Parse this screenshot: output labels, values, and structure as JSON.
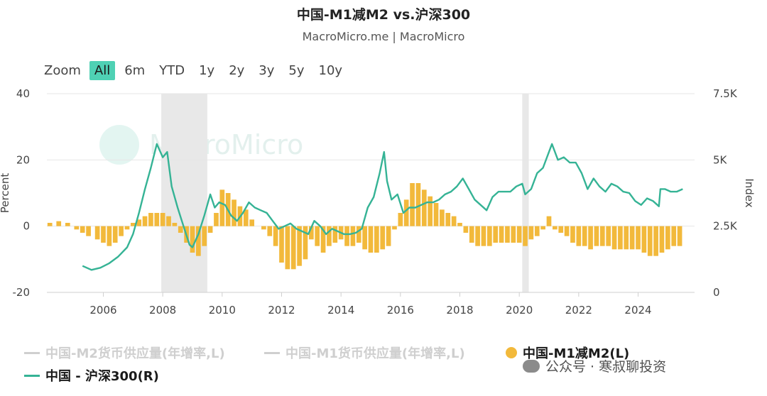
{
  "header": {
    "title": "中国-M1减M2 vs.沪深300",
    "subtitle": "MacroMicro.me | MacroMicro"
  },
  "zoom": {
    "label": "Zoom",
    "options": [
      "All",
      "6m",
      "YTD",
      "1y",
      "2y",
      "3y",
      "5y",
      "10y"
    ],
    "active": "All"
  },
  "watermark": {
    "text": "MacroMicro"
  },
  "footer": {
    "wechat": "公众号 · 寒叔聊投资"
  },
  "colors": {
    "index_line": "#35b395",
    "bars": "#f2b93b",
    "recession": "#e8e8e8",
    "grid": "#e6e6e6"
  },
  "chart_data": {
    "type": "bar+line",
    "title": "中国-M1减M2 vs.沪深300",
    "left_axis": {
      "label": "Percent",
      "min": -20,
      "max": 40,
      "ticks": [
        -20,
        0,
        20,
        40
      ]
    },
    "right_axis": {
      "label": "Index",
      "min": 0,
      "max": 7500,
      "ticks": [
        "0",
        "2.5K",
        "5K",
        "7.5K"
      ]
    },
    "x_axis": {
      "min": 2004.1,
      "max": 2025.9,
      "ticks": [
        "2006",
        "2008",
        "2010",
        "2012",
        "2014",
        "2016",
        "2018",
        "2020",
        "2022",
        "2024"
      ]
    },
    "shaded_periods": [
      [
        2007.95,
        2009.5
      ],
      [
        2020.1,
        2020.32
      ]
    ],
    "legend": [
      {
        "name": "中国-M2货币供应量(年增率,L)",
        "visible": false
      },
      {
        "name": "中国-M1货币供应量(年增率,L)",
        "visible": false
      },
      {
        "name": "中国-M1减M2(L)",
        "visible": true,
        "type": "bar"
      },
      {
        "name": "中国 - 沪深300(R)",
        "visible": true,
        "type": "line"
      }
    ],
    "series": [
      {
        "name": "中国-M1减M2(L)",
        "type": "bar",
        "points": [
          [
            2004.2,
            1
          ],
          [
            2004.5,
            1.5
          ],
          [
            2004.8,
            1
          ],
          [
            2005.1,
            -1
          ],
          [
            2005.3,
            -2
          ],
          [
            2005.5,
            -3
          ],
          [
            2005.8,
            -4
          ],
          [
            2006.0,
            -5
          ],
          [
            2006.2,
            -6
          ],
          [
            2006.4,
            -5
          ],
          [
            2006.6,
            -3
          ],
          [
            2006.8,
            -1
          ],
          [
            2007.0,
            1
          ],
          [
            2007.2,
            2
          ],
          [
            2007.4,
            3
          ],
          [
            2007.6,
            4
          ],
          [
            2007.8,
            4
          ],
          [
            2008.0,
            4
          ],
          [
            2008.2,
            3
          ],
          [
            2008.4,
            1
          ],
          [
            2008.6,
            -2
          ],
          [
            2008.8,
            -5
          ],
          [
            2009.0,
            -8
          ],
          [
            2009.2,
            -9
          ],
          [
            2009.4,
            -6
          ],
          [
            2009.6,
            -2
          ],
          [
            2009.8,
            4
          ],
          [
            2010.0,
            11
          ],
          [
            2010.2,
            10
          ],
          [
            2010.4,
            8
          ],
          [
            2010.6,
            6
          ],
          [
            2010.8,
            5
          ],
          [
            2011.0,
            2
          ],
          [
            2011.2,
            0
          ],
          [
            2011.4,
            -1
          ],
          [
            2011.6,
            -3
          ],
          [
            2011.8,
            -6
          ],
          [
            2012.0,
            -11
          ],
          [
            2012.2,
            -13
          ],
          [
            2012.4,
            -13
          ],
          [
            2012.6,
            -12
          ],
          [
            2012.8,
            -10
          ],
          [
            2013.0,
            -4
          ],
          [
            2013.2,
            -6
          ],
          [
            2013.4,
            -8
          ],
          [
            2013.6,
            -6
          ],
          [
            2013.8,
            -5
          ],
          [
            2014.0,
            -4
          ],
          [
            2014.2,
            -6
          ],
          [
            2014.4,
            -6
          ],
          [
            2014.6,
            -5
          ],
          [
            2014.8,
            -7
          ],
          [
            2015.0,
            -8
          ],
          [
            2015.2,
            -8
          ],
          [
            2015.4,
            -7
          ],
          [
            2015.6,
            -6
          ],
          [
            2015.8,
            -1
          ],
          [
            2016.0,
            4
          ],
          [
            2016.2,
            8
          ],
          [
            2016.4,
            13
          ],
          [
            2016.6,
            13
          ],
          [
            2016.8,
            11
          ],
          [
            2017.0,
            9
          ],
          [
            2017.2,
            7
          ],
          [
            2017.4,
            5
          ],
          [
            2017.6,
            4
          ],
          [
            2017.8,
            3
          ],
          [
            2018.0,
            1
          ],
          [
            2018.2,
            -2
          ],
          [
            2018.4,
            -5
          ],
          [
            2018.6,
            -6
          ],
          [
            2018.8,
            -6
          ],
          [
            2019.0,
            -6
          ],
          [
            2019.2,
            -5
          ],
          [
            2019.4,
            -5
          ],
          [
            2019.6,
            -5
          ],
          [
            2019.8,
            -5
          ],
          [
            2020.0,
            -5
          ],
          [
            2020.2,
            -6
          ],
          [
            2020.4,
            -4
          ],
          [
            2020.6,
            -3
          ],
          [
            2020.8,
            -1
          ],
          [
            2021.0,
            3
          ],
          [
            2021.2,
            -1
          ],
          [
            2021.4,
            -2
          ],
          [
            2021.6,
            -3
          ],
          [
            2021.8,
            -5
          ],
          [
            2022.0,
            -6
          ],
          [
            2022.2,
            -6
          ],
          [
            2022.4,
            -7
          ],
          [
            2022.6,
            -6
          ],
          [
            2022.8,
            -6
          ],
          [
            2023.0,
            -6
          ],
          [
            2023.2,
            -7
          ],
          [
            2023.4,
            -7
          ],
          [
            2023.6,
            -7
          ],
          [
            2023.8,
            -7
          ],
          [
            2024.0,
            -7
          ],
          [
            2024.2,
            -8
          ],
          [
            2024.4,
            -9
          ],
          [
            2024.6,
            -9
          ],
          [
            2024.8,
            -8
          ],
          [
            2025.0,
            -7
          ],
          [
            2025.2,
            -6
          ],
          [
            2025.4,
            -6
          ]
        ]
      },
      {
        "name": "中国 - 沪深300(R)",
        "type": "line",
        "points": [
          [
            2005.3,
            1000
          ],
          [
            2005.6,
            850
          ],
          [
            2005.9,
            930
          ],
          [
            2006.2,
            1100
          ],
          [
            2006.5,
            1350
          ],
          [
            2006.8,
            1700
          ],
          [
            2007.0,
            2200
          ],
          [
            2007.2,
            3000
          ],
          [
            2007.4,
            3900
          ],
          [
            2007.6,
            4700
          ],
          [
            2007.8,
            5600
          ],
          [
            2008.0,
            5100
          ],
          [
            2008.15,
            5300
          ],
          [
            2008.3,
            4000
          ],
          [
            2008.5,
            3200
          ],
          [
            2008.7,
            2500
          ],
          [
            2008.9,
            1800
          ],
          [
            2009.0,
            1700
          ],
          [
            2009.2,
            2200
          ],
          [
            2009.4,
            2900
          ],
          [
            2009.6,
            3700
          ],
          [
            2009.75,
            3200
          ],
          [
            2009.9,
            3400
          ],
          [
            2010.1,
            3300
          ],
          [
            2010.3,
            2900
          ],
          [
            2010.5,
            2700
          ],
          [
            2010.7,
            3000
          ],
          [
            2010.9,
            3400
          ],
          [
            2011.1,
            3200
          ],
          [
            2011.3,
            3100
          ],
          [
            2011.5,
            3000
          ],
          [
            2011.7,
            2700
          ],
          [
            2011.9,
            2400
          ],
          [
            2012.1,
            2500
          ],
          [
            2012.3,
            2600
          ],
          [
            2012.5,
            2400
          ],
          [
            2012.7,
            2300
          ],
          [
            2012.9,
            2200
          ],
          [
            2013.1,
            2700
          ],
          [
            2013.3,
            2500
          ],
          [
            2013.5,
            2200
          ],
          [
            2013.7,
            2400
          ],
          [
            2013.9,
            2300
          ],
          [
            2014.1,
            2200
          ],
          [
            2014.3,
            2200
          ],
          [
            2014.5,
            2250
          ],
          [
            2014.7,
            2400
          ],
          [
            2014.9,
            3200
          ],
          [
            2015.1,
            3600
          ],
          [
            2015.3,
            4500
          ],
          [
            2015.45,
            5300
          ],
          [
            2015.55,
            4200
          ],
          [
            2015.7,
            3500
          ],
          [
            2015.9,
            3700
          ],
          [
            2016.1,
            3000
          ],
          [
            2016.3,
            3200
          ],
          [
            2016.5,
            3200
          ],
          [
            2016.7,
            3300
          ],
          [
            2016.9,
            3400
          ],
          [
            2017.1,
            3400
          ],
          [
            2017.3,
            3500
          ],
          [
            2017.5,
            3700
          ],
          [
            2017.7,
            3800
          ],
          [
            2017.9,
            4000
          ],
          [
            2018.1,
            4300
          ],
          [
            2018.3,
            3900
          ],
          [
            2018.5,
            3500
          ],
          [
            2018.7,
            3300
          ],
          [
            2018.9,
            3100
          ],
          [
            2019.1,
            3600
          ],
          [
            2019.3,
            3800
          ],
          [
            2019.5,
            3800
          ],
          [
            2019.7,
            3800
          ],
          [
            2019.9,
            4000
          ],
          [
            2020.1,
            4100
          ],
          [
            2020.2,
            3700
          ],
          [
            2020.4,
            3900
          ],
          [
            2020.6,
            4500
          ],
          [
            2020.8,
            4700
          ],
          [
            2021.0,
            5300
          ],
          [
            2021.1,
            5600
          ],
          [
            2021.3,
            5000
          ],
          [
            2021.5,
            5100
          ],
          [
            2021.7,
            4900
          ],
          [
            2021.9,
            4900
          ],
          [
            2022.1,
            4500
          ],
          [
            2022.3,
            3900
          ],
          [
            2022.5,
            4300
          ],
          [
            2022.7,
            4000
          ],
          [
            2022.9,
            3800
          ],
          [
            2023.1,
            4100
          ],
          [
            2023.3,
            4000
          ],
          [
            2023.5,
            3800
          ],
          [
            2023.7,
            3750
          ],
          [
            2023.9,
            3450
          ],
          [
            2024.1,
            3300
          ],
          [
            2024.3,
            3550
          ],
          [
            2024.5,
            3450
          ],
          [
            2024.7,
            3250
          ],
          [
            2024.75,
            3900
          ],
          [
            2024.9,
            3900
          ],
          [
            2025.1,
            3800
          ],
          [
            2025.3,
            3800
          ],
          [
            2025.5,
            3900
          ]
        ]
      }
    ]
  }
}
